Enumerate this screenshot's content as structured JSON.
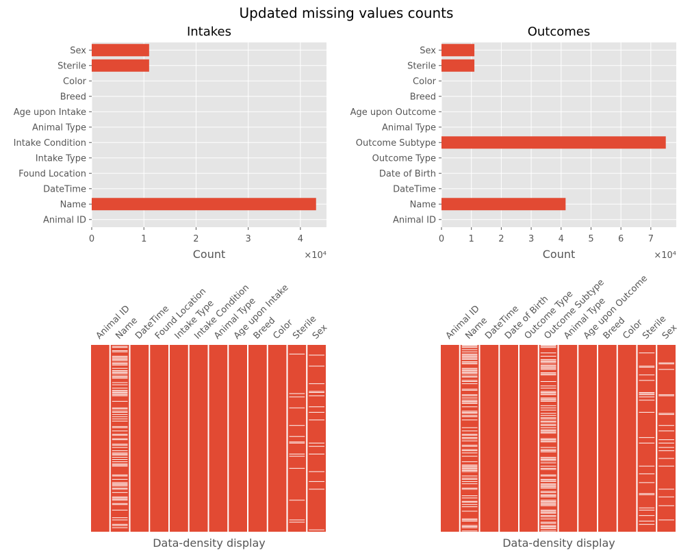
{
  "figure": {
    "title": "Updated missing values counts"
  },
  "chart_data": [
    {
      "type": "bar",
      "orientation": "horizontal",
      "title": "Intakes",
      "categories": [
        "Animal ID",
        "Name",
        "DateTime",
        "Found Location",
        "Intake Type",
        "Intake Condition",
        "Animal Type",
        "Age upon Intake",
        "Breed",
        "Color",
        "Sterile",
        "Sex"
      ],
      "values": [
        0,
        43000,
        0,
        0,
        0,
        0,
        0,
        0,
        0,
        0,
        11000,
        11000
      ],
      "xlabel": "Count",
      "x_multiplier_text": "×10⁴",
      "xlim": [
        0,
        45000
      ],
      "xticks": [
        0,
        10000,
        20000,
        30000,
        40000
      ],
      "xtick_labels": [
        "0",
        "1",
        "2",
        "3",
        "4"
      ],
      "grid": true,
      "color": "#E24A33"
    },
    {
      "type": "bar",
      "orientation": "horizontal",
      "title": "Outcomes",
      "categories": [
        "Animal ID",
        "Name",
        "DateTime",
        "Date of Birth",
        "Outcome Type",
        "Outcome Subtype",
        "Animal Type",
        "Age upon Outcome",
        "Breed",
        "Color",
        "Sterile",
        "Sex"
      ],
      "values": [
        0,
        41500,
        0,
        0,
        0,
        75000,
        0,
        0,
        0,
        0,
        11000,
        11000
      ],
      "xlabel": "Count",
      "x_multiplier_text": "×10⁴",
      "xlim": [
        0,
        78500
      ],
      "xticks": [
        0,
        10000,
        20000,
        30000,
        40000,
        50000,
        60000,
        70000
      ],
      "xtick_labels": [
        "0",
        "1",
        "2",
        "3",
        "4",
        "5",
        "6",
        "7"
      ],
      "grid": true,
      "color": "#E24A33"
    },
    {
      "type": "heatmap",
      "title": "",
      "xlabel": "Data-density display",
      "columns": [
        "Animal ID",
        "Name",
        "DateTime",
        "Found Location",
        "Intake Type",
        "Intake Condition",
        "Animal Type",
        "Age upon Intake",
        "Breed",
        "Color",
        "Sterile",
        "Sex"
      ],
      "missing_fraction": [
        0,
        0.45,
        0,
        0,
        0,
        0,
        0,
        0,
        0,
        0,
        0.12,
        0.12
      ],
      "present_color": "#E24A33",
      "missing_color": "#ffffff"
    },
    {
      "type": "heatmap",
      "title": "",
      "xlabel": "Data-density display",
      "columns": [
        "Animal ID",
        "Name",
        "DateTime",
        "Date of Birth",
        "Outcome Type",
        "Outcome Subtype",
        "Animal Type",
        "Age upon Outcome",
        "Breed",
        "Color",
        "Sterile",
        "Sex"
      ],
      "missing_fraction": [
        0,
        0.45,
        0,
        0,
        0,
        0.55,
        0,
        0,
        0,
        0,
        0.1,
        0.1
      ],
      "present_color": "#E24A33",
      "missing_color": "#ffffff"
    }
  ]
}
